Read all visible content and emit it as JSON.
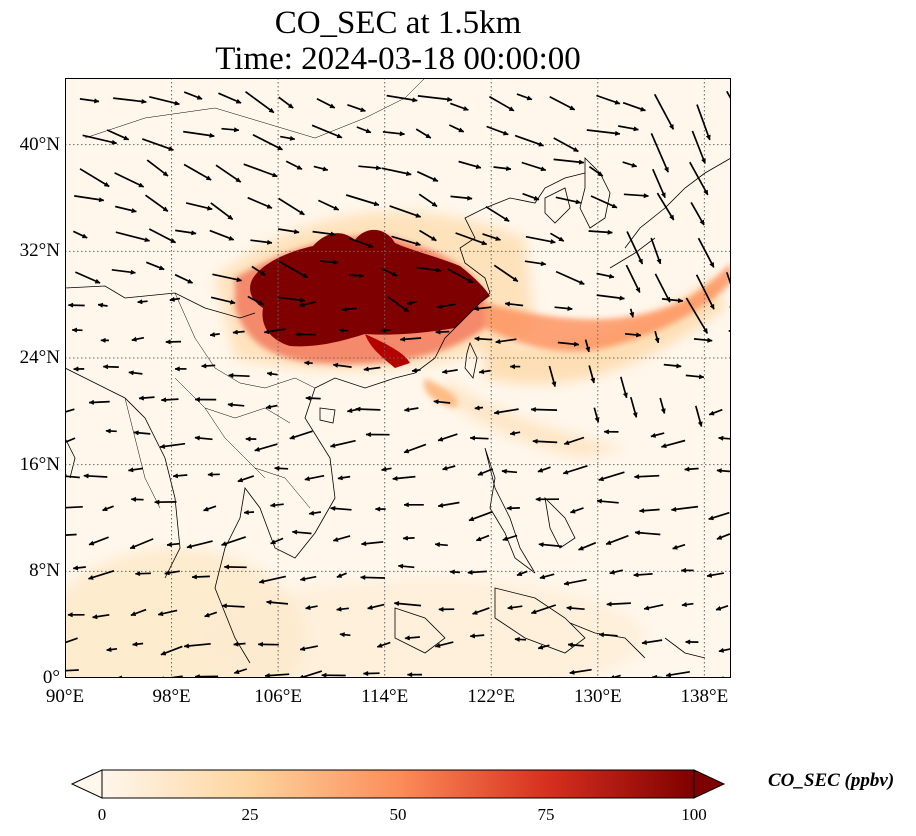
{
  "title": {
    "line1": "CO_SEC at 1.5km",
    "line2": "Time: 2024-03-18 00:00:00"
  },
  "map": {
    "projection": "PlateCarree",
    "extent": {
      "lon_min": 90,
      "lon_max": 140,
      "lat_min": 0,
      "lat_max": 45
    },
    "gridlines": "dotted",
    "lat_ticks": [
      {
        "value": 40,
        "label": "40°N"
      },
      {
        "value": 32,
        "label": "32°N"
      },
      {
        "value": 24,
        "label": "24°N"
      },
      {
        "value": 16,
        "label": "16°N"
      },
      {
        "value": 8,
        "label": "8°N"
      },
      {
        "value": 0,
        "label": "0°"
      }
    ],
    "lon_ticks": [
      {
        "value": 90,
        "label": "90°E"
      },
      {
        "value": 98,
        "label": "98°E"
      },
      {
        "value": 106,
        "label": "106°E"
      },
      {
        "value": 114,
        "label": "114°E"
      },
      {
        "value": 122,
        "label": "122°E"
      },
      {
        "value": 130,
        "label": "130°E"
      },
      {
        "value": 138,
        "label": "138°E"
      }
    ],
    "overlays": [
      "coastlines",
      "borders",
      "wind-vectors"
    ]
  },
  "colorbar": {
    "title": "CO_SEC (ppbv)",
    "ticks": [
      "0",
      "25",
      "50",
      "75",
      "100"
    ],
    "range": [
      0,
      100
    ],
    "colormap": "OrRd",
    "colors": [
      "#fff7ec",
      "#fdd49e",
      "#fc8d59",
      "#d7301f",
      "#7f0000"
    ],
    "extend": "both"
  }
}
